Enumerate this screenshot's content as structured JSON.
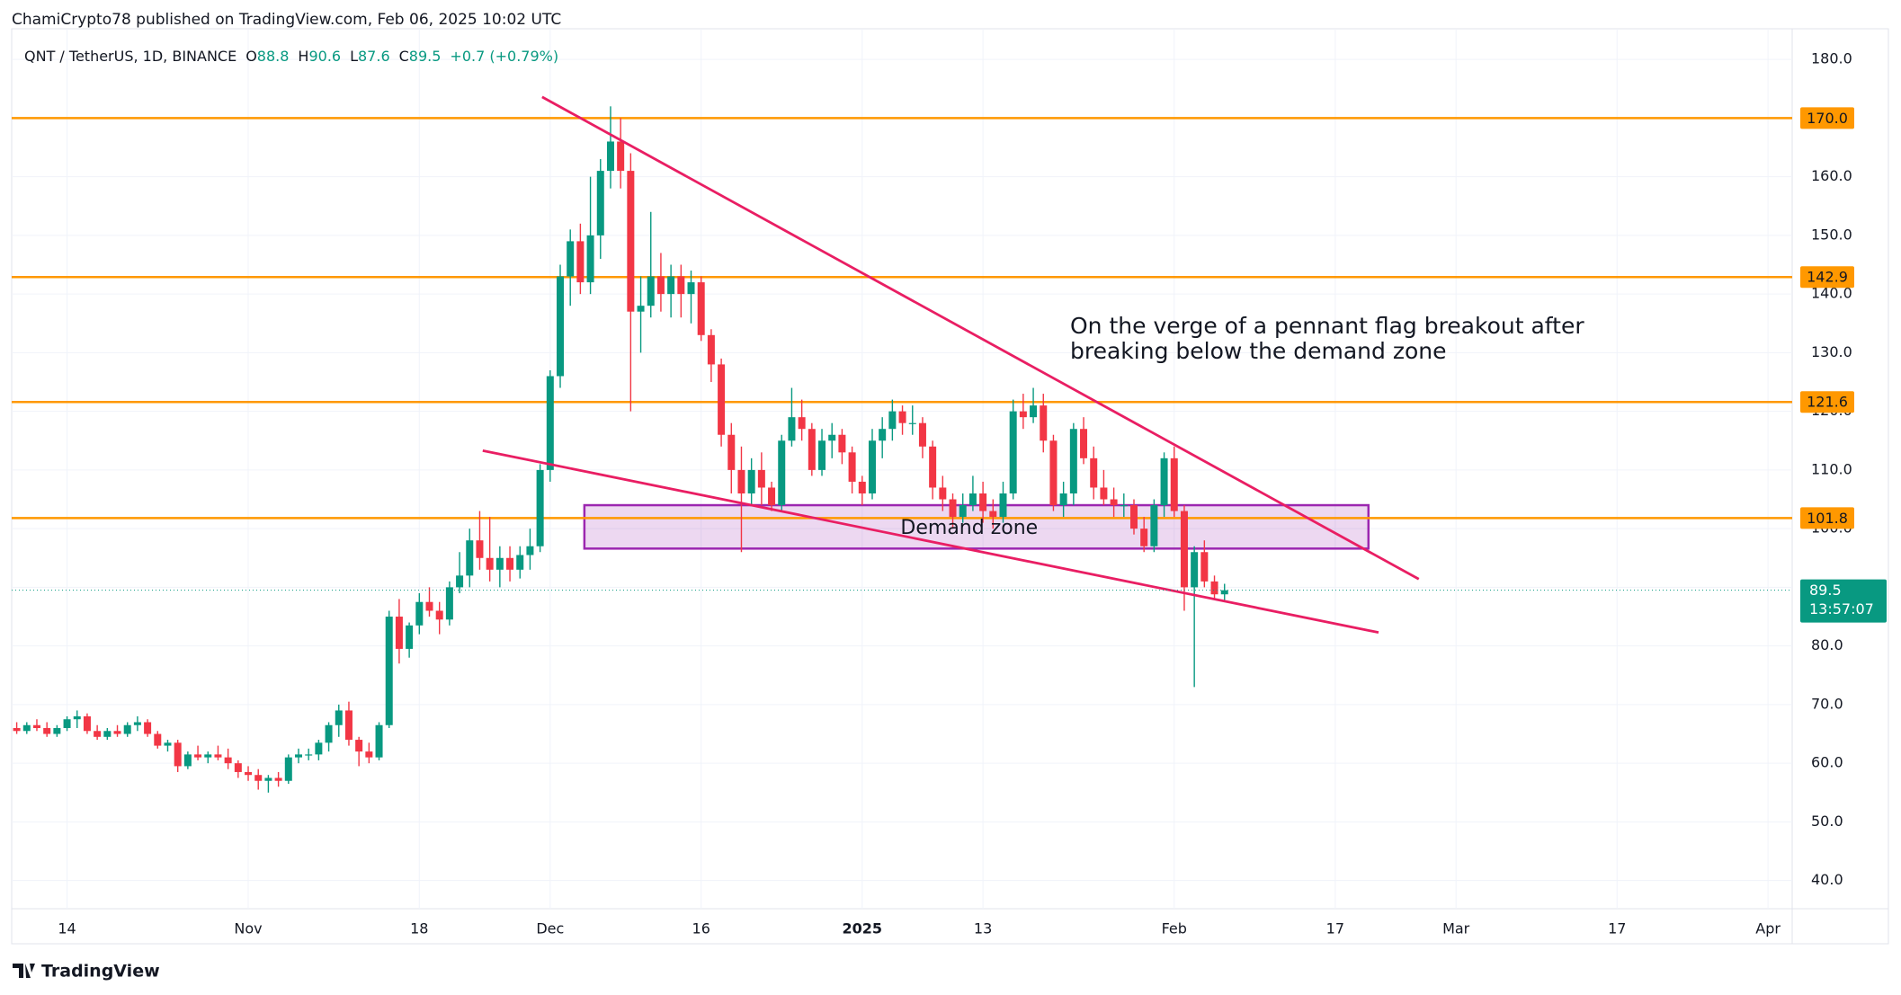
{
  "header": "ChamiCrypto78 published on TradingView.com, Feb 06, 2025 10:02 UTC",
  "footer": "TradingView",
  "chart_data": {
    "type": "candlestick",
    "symbol": "QNT / TetherUS, 1D, BINANCE",
    "ohlc_prefixes": [
      "O",
      "H",
      "L",
      "C"
    ],
    "change": "+0.7 (+0.79%)",
    "up_color": "#089981",
    "down_color": "#f23645",
    "open": [
      66,
      65.5,
      66.5,
      66,
      65,
      66,
      67.5,
      68,
      65.5,
      64.5,
      65.5,
      65,
      66.5,
      67,
      65,
      63,
      63.5,
      59.5,
      61.5,
      61,
      61.5,
      61,
      60,
      58.5,
      58,
      57,
      57.5,
      57,
      61,
      61.5,
      61.5,
      63.5,
      66.5,
      69,
      64,
      62,
      61,
      66.5,
      85,
      79.5,
      83.5,
      87.5,
      86,
      84.5,
      90,
      92,
      98,
      95,
      93,
      95,
      93,
      95.5,
      97,
      110,
      126,
      143,
      149,
      142,
      150,
      161,
      166,
      161,
      137,
      138,
      143,
      140,
      143,
      140,
      142,
      133,
      128,
      116,
      110,
      106,
      110,
      107,
      104,
      115,
      119,
      117,
      110,
      115,
      116,
      113,
      108,
      106,
      115,
      117,
      120,
      118,
      118,
      114,
      107,
      105,
      102,
      104,
      106,
      103,
      102,
      106,
      120,
      119,
      121,
      115,
      104,
      106,
      117,
      112,
      107,
      105,
      104,
      104,
      100,
      97,
      104,
      112,
      103,
      90,
      96,
      91,
      88.8
    ],
    "high": [
      67,
      67,
      67.5,
      67,
      66.5,
      68,
      69,
      68.5,
      66.5,
      66,
      66.5,
      67,
      68,
      67.5,
      65.5,
      64,
      64,
      62,
      63,
      62,
      63,
      62.5,
      60.5,
      59.5,
      59,
      58,
      58.5,
      61.5,
      62.5,
      62.5,
      64,
      67,
      70,
      70.5,
      64.5,
      63.5,
      67,
      86,
      88,
      84,
      89,
      90,
      87.5,
      91,
      96,
      100,
      103,
      102,
      97,
      97,
      97,
      100,
      111,
      127,
      145,
      151,
      152,
      160,
      163,
      172,
      170,
      164,
      143,
      154,
      147,
      145,
      145,
      144,
      143,
      134,
      129,
      118,
      114,
      112,
      113,
      108,
      116,
      124,
      122,
      118,
      117,
      118,
      117,
      114,
      109,
      117,
      119,
      122,
      121,
      121,
      119,
      115,
      109,
      106,
      106,
      109,
      108,
      105,
      108,
      122,
      123,
      124,
      123,
      116,
      108,
      118,
      119,
      114,
      110,
      107,
      106,
      105,
      102,
      105,
      113,
      114,
      104,
      97,
      98,
      92,
      90.6
    ],
    "low": [
      65,
      65,
      65.5,
      64.5,
      64.5,
      65.5,
      66,
      65,
      64,
      64,
      64.5,
      64.5,
      65.5,
      64.5,
      62.5,
      62,
      58.5,
      59,
      60.5,
      60,
      60.5,
      59,
      57.5,
      57,
      55.5,
      55,
      56,
      56.5,
      60,
      60.5,
      60.5,
      62,
      64.5,
      63,
      59.5,
      60,
      60.5,
      66,
      77,
      78,
      82,
      85,
      82,
      83.5,
      89,
      90,
      93,
      91,
      90,
      91,
      91.5,
      93,
      96,
      108,
      124,
      138,
      140,
      140,
      146,
      158,
      158,
      120,
      130,
      136,
      137,
      136,
      136,
      135,
      132,
      125,
      114,
      106,
      96,
      104,
      104,
      103,
      103,
      114,
      115,
      109,
      109,
      112,
      111,
      106,
      104,
      105,
      112,
      115,
      116,
      116,
      112,
      105,
      103,
      100,
      101,
      103,
      101,
      100,
      101,
      105,
      117,
      118,
      113,
      103,
      102,
      104,
      111,
      105,
      104,
      102,
      102,
      99,
      96,
      96,
      102,
      102,
      86,
      73,
      90,
      88,
      87.6
    ],
    "close": [
      65.5,
      66.5,
      66,
      65,
      66,
      67.5,
      68,
      65.5,
      64.5,
      65.5,
      65,
      66.5,
      67,
      65,
      63,
      63.5,
      59.5,
      61.5,
      61,
      61.5,
      61,
      60,
      58.5,
      58,
      57,
      57.5,
      57,
      61,
      61.5,
      61.5,
      63.5,
      66.5,
      69,
      64,
      62,
      61,
      66.5,
      85,
      79.5,
      83.5,
      87.5,
      86,
      84.5,
      90,
      92,
      98,
      95,
      93,
      95,
      93,
      95.5,
      97,
      110,
      126,
      143,
      149,
      142,
      150,
      161,
      166,
      161,
      137,
      138,
      143,
      140,
      143,
      140,
      142,
      133,
      128,
      116,
      110,
      106,
      110,
      107,
      104,
      115,
      119,
      117,
      110,
      115,
      116,
      113,
      108,
      106,
      115,
      117,
      120,
      118,
      118,
      114,
      107,
      105,
      102,
      104,
      106,
      103,
      102,
      106,
      120,
      119,
      121,
      115,
      104,
      106,
      117,
      112,
      107,
      105,
      104,
      104,
      100,
      97,
      104,
      112,
      103,
      90,
      96,
      91,
      88.8,
      89.5
    ],
    "xlim": [
      -0.5,
      176.4
    ],
    "xticks": [
      {
        "value": 5,
        "label": "14"
      },
      {
        "value": 23,
        "label": "Nov"
      },
      {
        "value": 40,
        "label": "18"
      },
      {
        "value": 53,
        "label": "Dec"
      },
      {
        "value": 68,
        "label": "16"
      },
      {
        "value": 84,
        "label": "2025"
      },
      {
        "value": 96,
        "label": "13"
      },
      {
        "value": 115,
        "label": "Feb"
      },
      {
        "value": 131,
        "label": "17"
      },
      {
        "value": 143,
        "label": "Mar"
      },
      {
        "value": 159,
        "label": "17"
      },
      {
        "value": 174,
        "label": "Apr"
      }
    ],
    "ylim": [
      35.2,
      184
    ],
    "yticks": [
      {
        "value": 40,
        "label": "40.0"
      },
      {
        "value": 50,
        "label": "50.0"
      },
      {
        "value": 60,
        "label": "60.0"
      },
      {
        "value": 70,
        "label": "70.0"
      },
      {
        "value": 80,
        "label": "80.0"
      },
      {
        "value": 90,
        "label": "90.0"
      },
      {
        "value": 100,
        "label": "100.0"
      },
      {
        "value": 110,
        "label": "110.0"
      },
      {
        "value": 120,
        "label": "120.0"
      },
      {
        "value": 130,
        "label": "130.0"
      },
      {
        "value": 140,
        "label": "140.0"
      },
      {
        "value": 150,
        "label": "150.0"
      },
      {
        "value": 160,
        "label": "160.0"
      },
      {
        "value": 170,
        "label": "170.0"
      },
      {
        "value": 180,
        "label": "180.0"
      }
    ],
    "grid": true,
    "levels_color": "#ff9800",
    "levels": [
      {
        "value": 170,
        "label": "170.0"
      },
      {
        "value": 142.9,
        "label": "142.9"
      },
      {
        "value": 121.6,
        "label": "121.6"
      },
      {
        "value": 101.8,
        "label": "101.8"
      }
    ],
    "last_price": 89.5,
    "countdown": "13:57:07",
    "trendline_color": "#e91e63",
    "trendlines": [
      {
        "x": [
          52.2,
          139.3
        ],
        "y": [
          173.6,
          91.4
        ]
      },
      {
        "x": [
          46.3,
          135.3
        ],
        "y": [
          113.3,
          82.3
        ]
      }
    ],
    "zone": {
      "label": "Demand zone",
      "x": [
        56.4,
        134.3
      ],
      "y": [
        104.0,
        96.6
      ],
      "color": "#9c27b0"
    },
    "annotation": [
      "On the verge of a pennant flag breakout after",
      "breaking below the demand zone"
    ]
  }
}
